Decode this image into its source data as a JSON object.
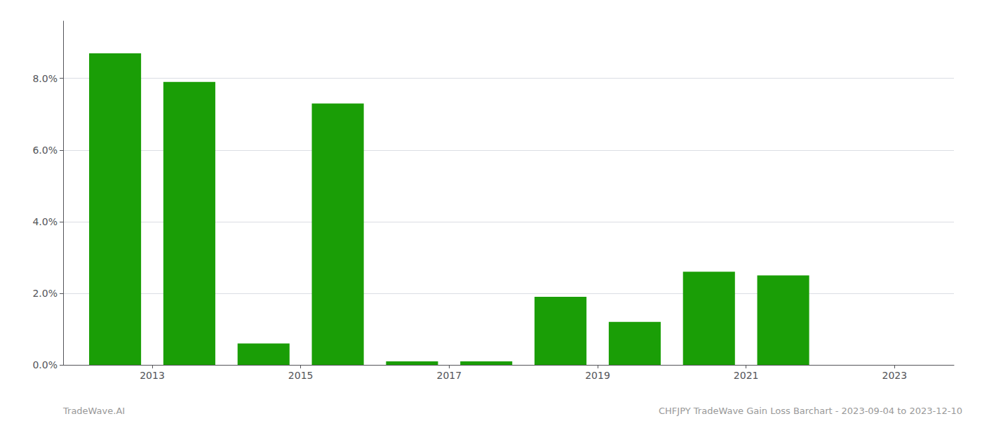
{
  "chart_data": {
    "type": "bar",
    "x": [
      2012.5,
      2013.5,
      2014.5,
      2015.5,
      2016.5,
      2017.5,
      2018.5,
      2019.5,
      2020.5,
      2021.5
    ],
    "values": [
      0.087,
      0.079,
      0.006,
      0.073,
      0.001,
      0.001,
      0.019,
      0.012,
      0.026,
      0.025
    ],
    "color": "#1a9e06",
    "xlim": [
      2011.8,
      2023.8
    ],
    "xticks": [
      2013,
      2015,
      2017,
      2019,
      2021,
      2023
    ],
    "ylim": [
      0,
      0.096
    ],
    "yticks": [
      {
        "value": 0.0,
        "label": "0.0%"
      },
      {
        "value": 0.02,
        "label": "2.0%"
      },
      {
        "value": 0.04,
        "label": "4.0%"
      },
      {
        "value": 0.06,
        "label": "6.0%"
      },
      {
        "value": 0.08,
        "label": "8.0%"
      }
    ],
    "grid": true,
    "annotations": [
      "TradeWave.AI",
      "CHFJPY TradeWave Gain Loss Barchart - 2023-09-04 to 2023-12-10"
    ]
  }
}
